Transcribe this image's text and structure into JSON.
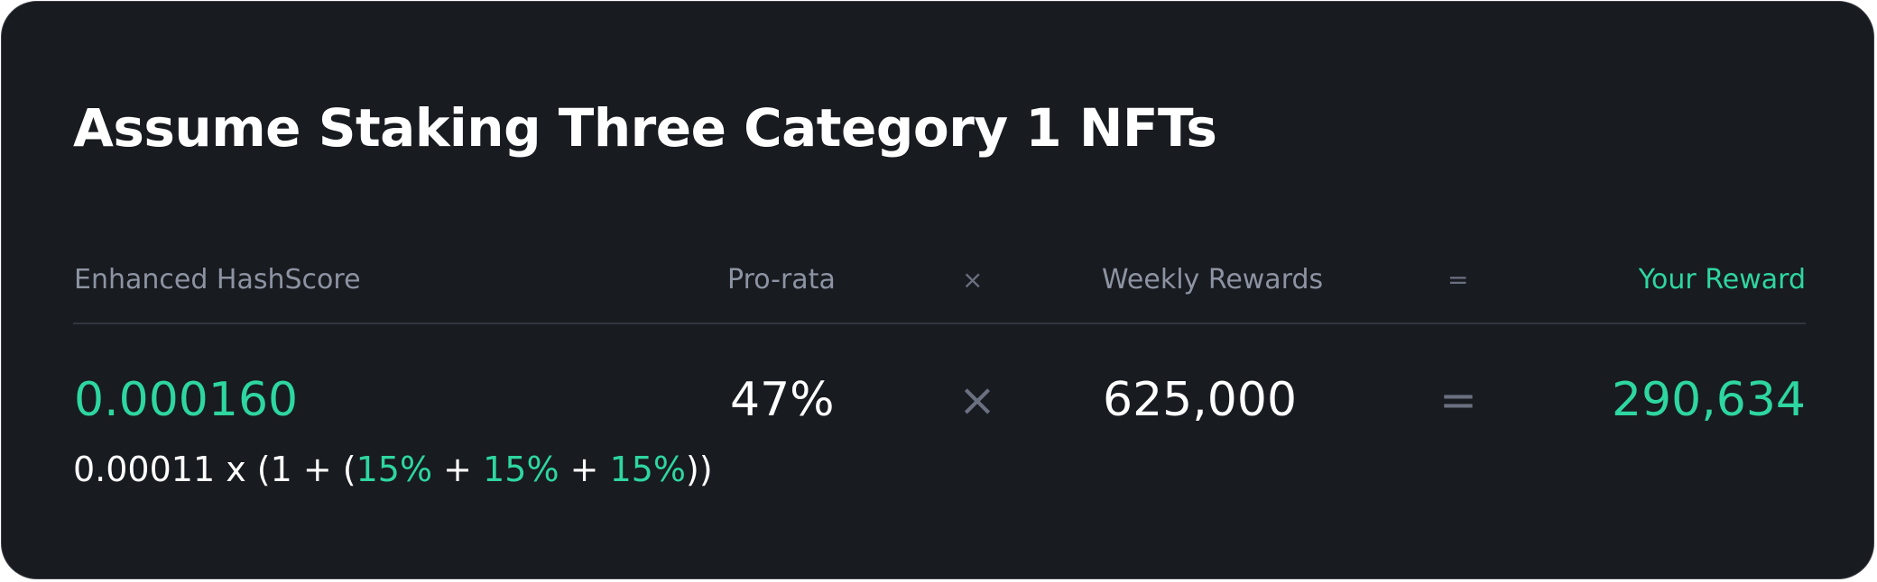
{
  "title": "Assume Staking Three Category 1 NFTs",
  "colors": {
    "background": "#181b20",
    "accent": "#2ed6a0",
    "muted_text": "#8d93a2",
    "operator": "#6b7080",
    "divider": "#33363d"
  },
  "headers": {
    "hashscore": "Enhanced HashScore",
    "prorata": "Pro-rata",
    "times": "×",
    "weekly": "Weekly Rewards",
    "equals": "=",
    "reward": "Your Reward"
  },
  "values": {
    "hashscore": "0.000160",
    "prorata": "47%",
    "times": "×",
    "weekly": "625,000",
    "equals": "=",
    "reward": "290,634"
  },
  "formula": {
    "prefix": "0.00011 x (1 + (",
    "boost1": "15%",
    "plus1": " + ",
    "boost2": "15%",
    "plus2": " + ",
    "boost3": "15%",
    "suffix": "))"
  }
}
